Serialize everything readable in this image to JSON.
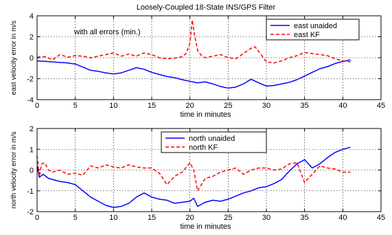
{
  "chart_data": [
    {
      "type": "line",
      "title": "Loosely-Coupled 18-State INS/GPS Filter",
      "xlabel": "time in minutes",
      "ylabel": "east velocity error in m/s",
      "xlim": [
        0,
        45
      ],
      "ylim": [
        -4,
        4
      ],
      "xticks": [
        0,
        5,
        10,
        15,
        20,
        25,
        30,
        35,
        40,
        45
      ],
      "yticks": [
        -4,
        -2,
        0,
        2,
        4
      ],
      "grid": true,
      "grid_style": "dotted",
      "legend_position": "top-right",
      "annotation": "with all errors (min.)",
      "series": [
        {
          "name": "east unaided",
          "color": "#0000ff",
          "style": "solid",
          "x": [
            0,
            1,
            2,
            3,
            4,
            5,
            6,
            7,
            8,
            9,
            10,
            11,
            12,
            13,
            14,
            15,
            16,
            17,
            18,
            19,
            20,
            21,
            22,
            23,
            24,
            25,
            26,
            27,
            28,
            29,
            30,
            31,
            32,
            33,
            34,
            35,
            36,
            37,
            38,
            39,
            40,
            41
          ],
          "y": [
            -0.3,
            -0.35,
            -0.4,
            -0.45,
            -0.5,
            -0.6,
            -0.9,
            -1.2,
            -1.3,
            -1.45,
            -1.55,
            -1.45,
            -1.2,
            -0.95,
            -1.1,
            -1.4,
            -1.6,
            -1.8,
            -1.9,
            -2.1,
            -2.25,
            -2.4,
            -2.3,
            -2.5,
            -2.75,
            -2.9,
            -2.8,
            -2.5,
            -2.05,
            -2.4,
            -2.7,
            -2.65,
            -2.5,
            -2.35,
            -2.1,
            -1.75,
            -1.4,
            -1.05,
            -0.85,
            -0.55,
            -0.35,
            -0.2
          ]
        },
        {
          "name": "east KF",
          "color": "#ff0000",
          "style": "dashed",
          "x": [
            0,
            1,
            2,
            3,
            4,
            5,
            6,
            7,
            8,
            9,
            10,
            11,
            12,
            13,
            14,
            15,
            16,
            17,
            18,
            19,
            19.5,
            20,
            20.3,
            20.6,
            21,
            21.5,
            22,
            23,
            24,
            25,
            26,
            27,
            28,
            28.5,
            29,
            30,
            31,
            32,
            33,
            34,
            35,
            36,
            37,
            38,
            39,
            40,
            41
          ],
          "y": [
            0.05,
            0.1,
            -0.2,
            0.3,
            0.05,
            0.2,
            0.15,
            0.0,
            0.15,
            0.3,
            0.45,
            0.15,
            0.35,
            0.15,
            0.45,
            0.3,
            0.0,
            -0.1,
            -0.05,
            0.1,
            0.4,
            1.4,
            3.6,
            2.2,
            0.7,
            0.2,
            0.0,
            0.15,
            0.3,
            0.0,
            -0.1,
            0.4,
            0.9,
            1.05,
            0.6,
            -0.4,
            -0.5,
            -0.3,
            0.0,
            0.2,
            0.5,
            0.4,
            0.3,
            0.2,
            -0.1,
            -0.3,
            -0.4
          ]
        }
      ]
    },
    {
      "type": "line",
      "title": "",
      "xlabel": "time in minutes",
      "ylabel": "north velocity error in m/s",
      "xlim": [
        0,
        45
      ],
      "ylim": [
        -2,
        2
      ],
      "xticks": [
        0,
        5,
        10,
        15,
        20,
        25,
        30,
        35,
        40,
        45
      ],
      "yticks": [
        -2,
        -1,
        0,
        1,
        2
      ],
      "grid": true,
      "grid_style": "dotted",
      "legend_position": "top-center",
      "series": [
        {
          "name": "north unaided",
          "color": "#0000ff",
          "style": "solid",
          "x": [
            0,
            0.3,
            0.8,
            1.5,
            2,
            3,
            4,
            5,
            6,
            7,
            8,
            9,
            10,
            11,
            12,
            13,
            14,
            15,
            16,
            17,
            18,
            19,
            20,
            20.5,
            21,
            22,
            23,
            24,
            25,
            26,
            27,
            28,
            29,
            30,
            31,
            32,
            33,
            34,
            35,
            36,
            37,
            38,
            39,
            40,
            41
          ],
          "y": [
            0.2,
            -0.35,
            -0.2,
            -0.4,
            -0.45,
            -0.55,
            -0.6,
            -0.7,
            -1.0,
            -1.3,
            -1.5,
            -1.7,
            -1.8,
            -1.75,
            -1.6,
            -1.3,
            -1.1,
            -1.3,
            -1.4,
            -1.45,
            -1.6,
            -1.55,
            -1.5,
            -1.35,
            -1.75,
            -1.55,
            -1.45,
            -1.5,
            -1.4,
            -1.25,
            -1.1,
            -1.0,
            -0.85,
            -0.8,
            -0.65,
            -0.45,
            -0.05,
            0.3,
            0.5,
            0.1,
            0.3,
            0.6,
            0.85,
            1.0,
            1.1
          ]
        },
        {
          "name": "north KF",
          "color": "#ff0000",
          "style": "dashed",
          "x": [
            0,
            0.3,
            0.6,
            1,
            1.5,
            2,
            3,
            4,
            5,
            6,
            7,
            8,
            9,
            10,
            11,
            12,
            13,
            14,
            15,
            16,
            17,
            18,
            19,
            20,
            20.5,
            21,
            22,
            23,
            24,
            25,
            26,
            27,
            28,
            29,
            30,
            31,
            32,
            33,
            34,
            35,
            36,
            37,
            38,
            39,
            40,
            41
          ],
          "y": [
            0.7,
            -0.3,
            0.3,
            0.35,
            0.0,
            -0.1,
            0.0,
            -0.2,
            -0.15,
            -0.25,
            0.2,
            0.1,
            0.25,
            0.15,
            0.1,
            0.25,
            0.15,
            0.1,
            0.1,
            -0.15,
            -0.7,
            -0.3,
            -0.1,
            0.35,
            0.0,
            -1.0,
            -0.4,
            -0.3,
            -0.1,
            0.0,
            0.1,
            -0.2,
            0.0,
            0.1,
            0.1,
            0.0,
            0.05,
            0.3,
            0.35,
            -0.6,
            -0.2,
            0.2,
            0.1,
            0.05,
            -0.1,
            -0.1
          ]
        }
      ]
    }
  ]
}
